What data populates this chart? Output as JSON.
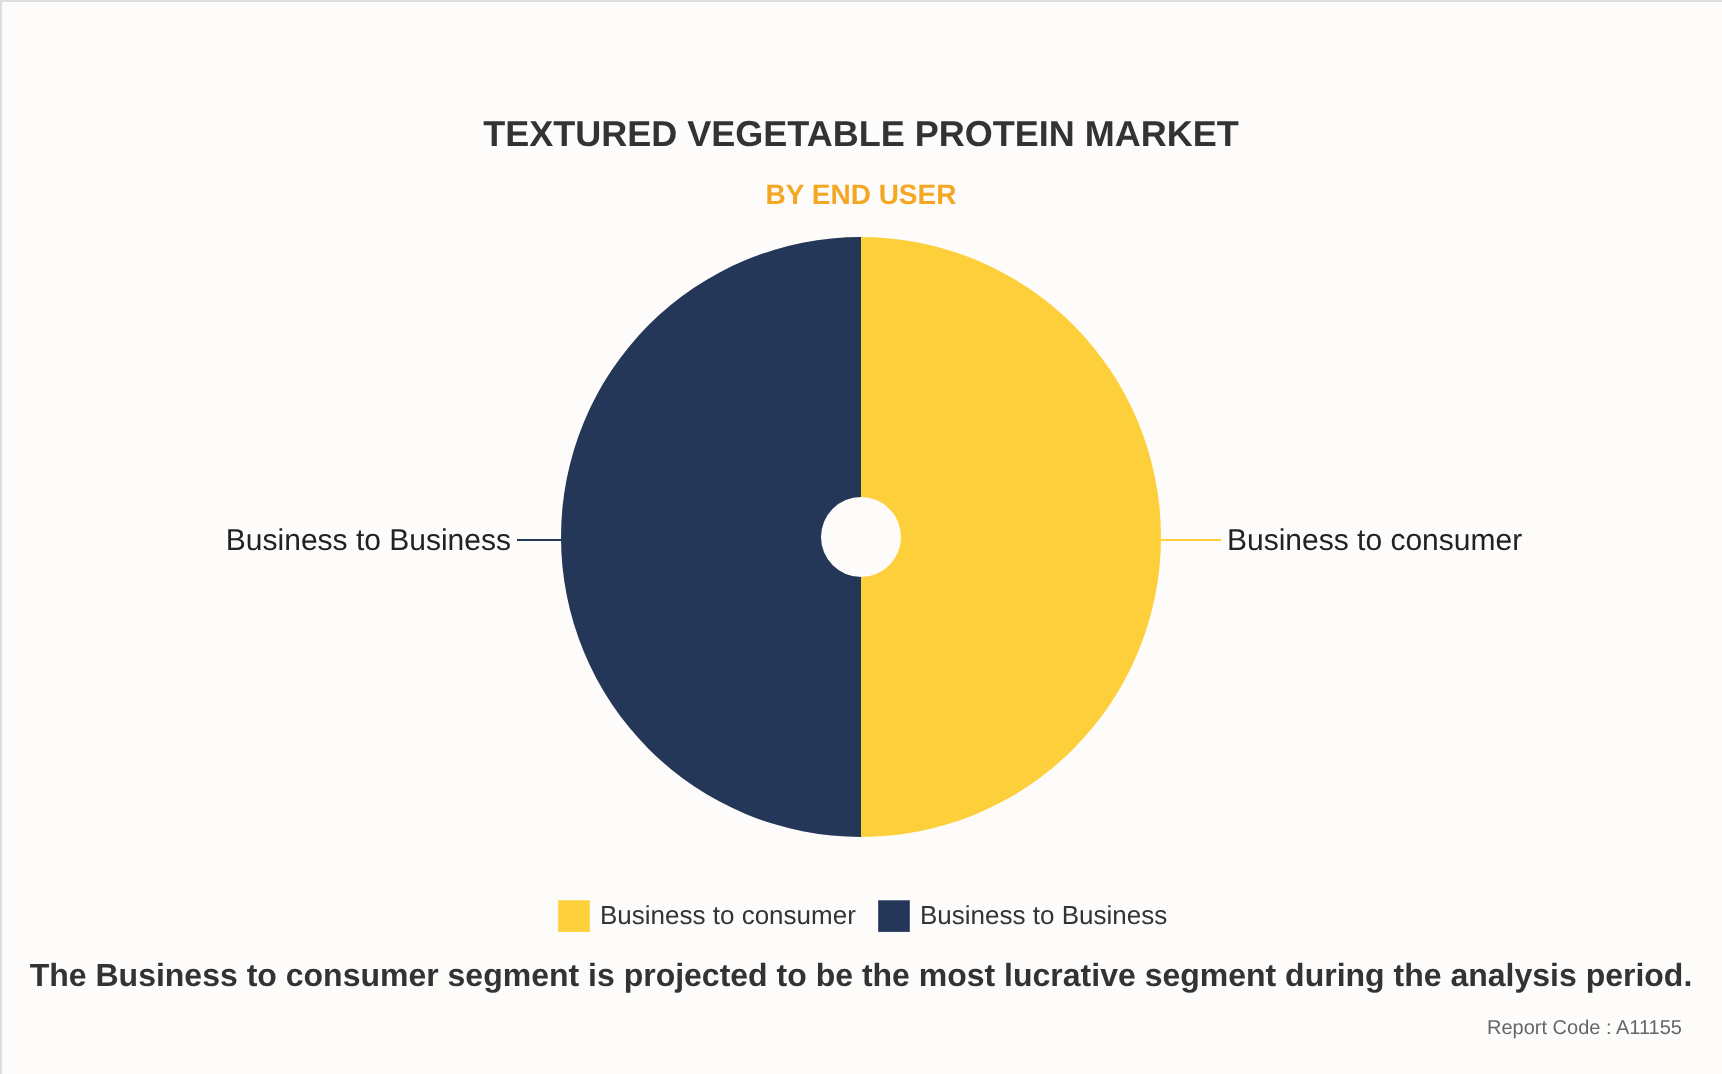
{
  "chart_data": {
    "type": "donut",
    "title": "TEXTURED VEGETABLE PROTEIN MARKET",
    "subtitle": "BY END USER",
    "categories": [
      "Business to consumer",
      "Business to Business"
    ],
    "values": [
      50,
      50
    ],
    "colors": [
      "#fdd03b",
      "#253759"
    ],
    "legend": "bottom",
    "annotations": [
      "The Business to consumer segment is projected to be the most lucrative segment during the analysis period.",
      "Report Code : A11155"
    ]
  }
}
